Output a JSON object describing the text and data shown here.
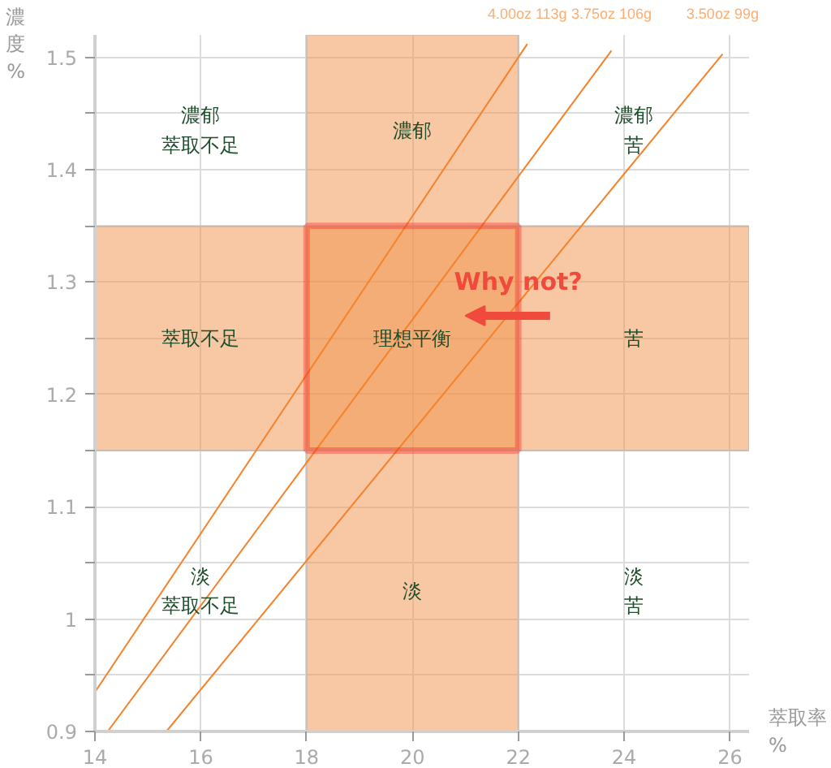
{
  "chart_data": {
    "type": "line",
    "xlabel": "萃取率 %",
    "ylabel": "濃度 %",
    "xlim": [
      14,
      26.36
    ],
    "ylim": [
      0.9,
      1.52
    ],
    "xticks": [
      14,
      16,
      18,
      20,
      22,
      24,
      26
    ],
    "yticks": [
      0.9,
      {
        "value": 0.95,
        "label": null
      },
      1,
      {
        "value": 1.05,
        "label": null
      },
      1.1,
      {
        "value": 1.15,
        "label": null
      },
      1.2,
      {
        "value": 1.25,
        "label": null
      },
      1.3,
      {
        "value": 1.35,
        "label": null
      },
      1.4,
      {
        "value": 1.45,
        "label": null
      },
      1.5
    ],
    "grid": true,
    "marker": "none",
    "line_style": "solid",
    "series": [
      {
        "name": "4.00oz 113g",
        "color": "#f5822a",
        "x": [
          14,
          22.17
        ],
        "values": [
          0.935,
          1.512
        ]
      },
      {
        "name": "3.75oz 106g",
        "color": "#f5822a",
        "x": [
          14.24,
          23.76
        ],
        "values": [
          0.9,
          1.506
        ]
      },
      {
        "name": "3.50oz 99g",
        "color": "#f5822a",
        "x": [
          15.35,
          25.86
        ],
        "values": [
          0.9,
          1.503
        ]
      }
    ],
    "bands": [
      {
        "axis": "x",
        "from": 18,
        "to": 22,
        "color": "#f19149"
      },
      {
        "axis": "y",
        "from": 1.15,
        "to": 1.35,
        "color": "#f19149"
      }
    ],
    "annotations": [
      "濃郁萃取不足",
      "濃郁",
      "濃郁苦",
      "萃取不足",
      "理想平衡",
      "苦",
      "淡萃取不足",
      "淡",
      "淡苦",
      "Why not?"
    ]
  }
}
